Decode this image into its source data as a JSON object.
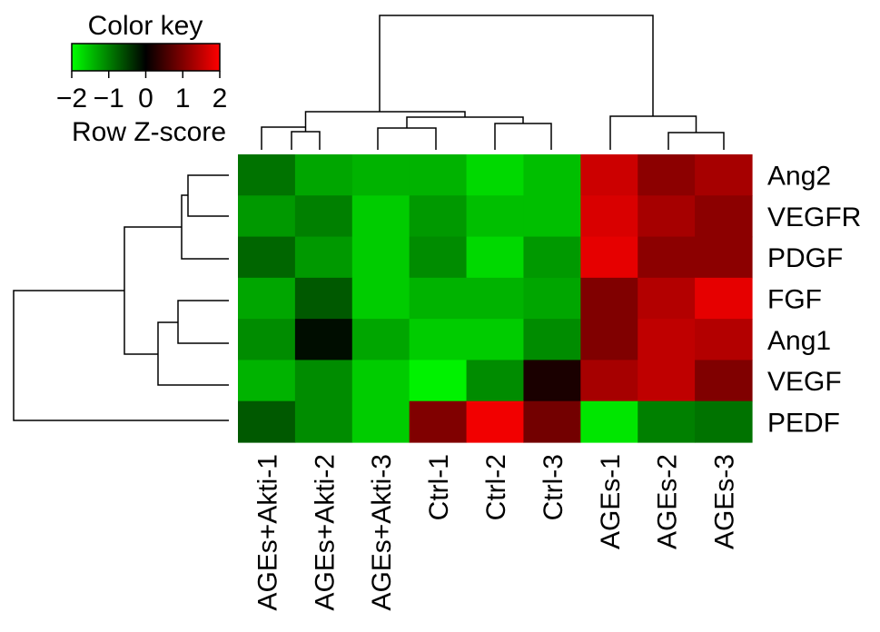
{
  "chart_data": {
    "type": "heatmap",
    "title": "",
    "xlabel": "",
    "ylabel": "",
    "columns": [
      "AGEs+Akti-1",
      "AGEs+Akti-2",
      "AGEs+Akti-3",
      "Ctrl-1",
      "Ctrl-2",
      "Ctrl-3",
      "AGEs-1",
      "AGEs-2",
      "AGEs-3"
    ],
    "rows": [
      "Ang2",
      "VEGFR",
      "PDGF",
      "FGF",
      "Ang1",
      "VEGF",
      "PEDF"
    ],
    "values": [
      [
        -0.9,
        -1.3,
        -1.4,
        -1.4,
        -1.7,
        -1.5,
        1.6,
        1.1,
        1.3
      ],
      [
        -1.2,
        -1.0,
        -1.6,
        -1.2,
        -1.5,
        -1.5,
        1.7,
        1.3,
        1.1
      ],
      [
        -0.8,
        -1.2,
        -1.6,
        -1.1,
        -1.7,
        -1.2,
        1.8,
        1.1,
        1.1
      ],
      [
        -1.3,
        -0.7,
        -1.6,
        -1.4,
        -1.4,
        -1.3,
        1.0,
        1.4,
        1.8
      ],
      [
        -1.1,
        -0.1,
        -1.3,
        -1.6,
        -1.6,
        -1.1,
        1.0,
        1.5,
        1.4
      ],
      [
        -1.4,
        -1.1,
        -1.6,
        -1.9,
        -1.1,
        0.2,
        1.3,
        1.5,
        1.0
      ],
      [
        -0.7,
        -1.1,
        -1.6,
        1.0,
        1.9,
        0.9,
        -1.8,
        -1.0,
        -0.9
      ]
    ],
    "color_key": {
      "title": "Color key",
      "label": "Row Z-score",
      "ticks": [
        "−2",
        "−1",
        "0",
        "1",
        "2"
      ],
      "range": [
        -2,
        2
      ],
      "low_color": "#00ff00",
      "mid_color": "#000000",
      "high_color": "#ff0000"
    },
    "column_dendrogram": true,
    "row_dendrogram": true
  }
}
